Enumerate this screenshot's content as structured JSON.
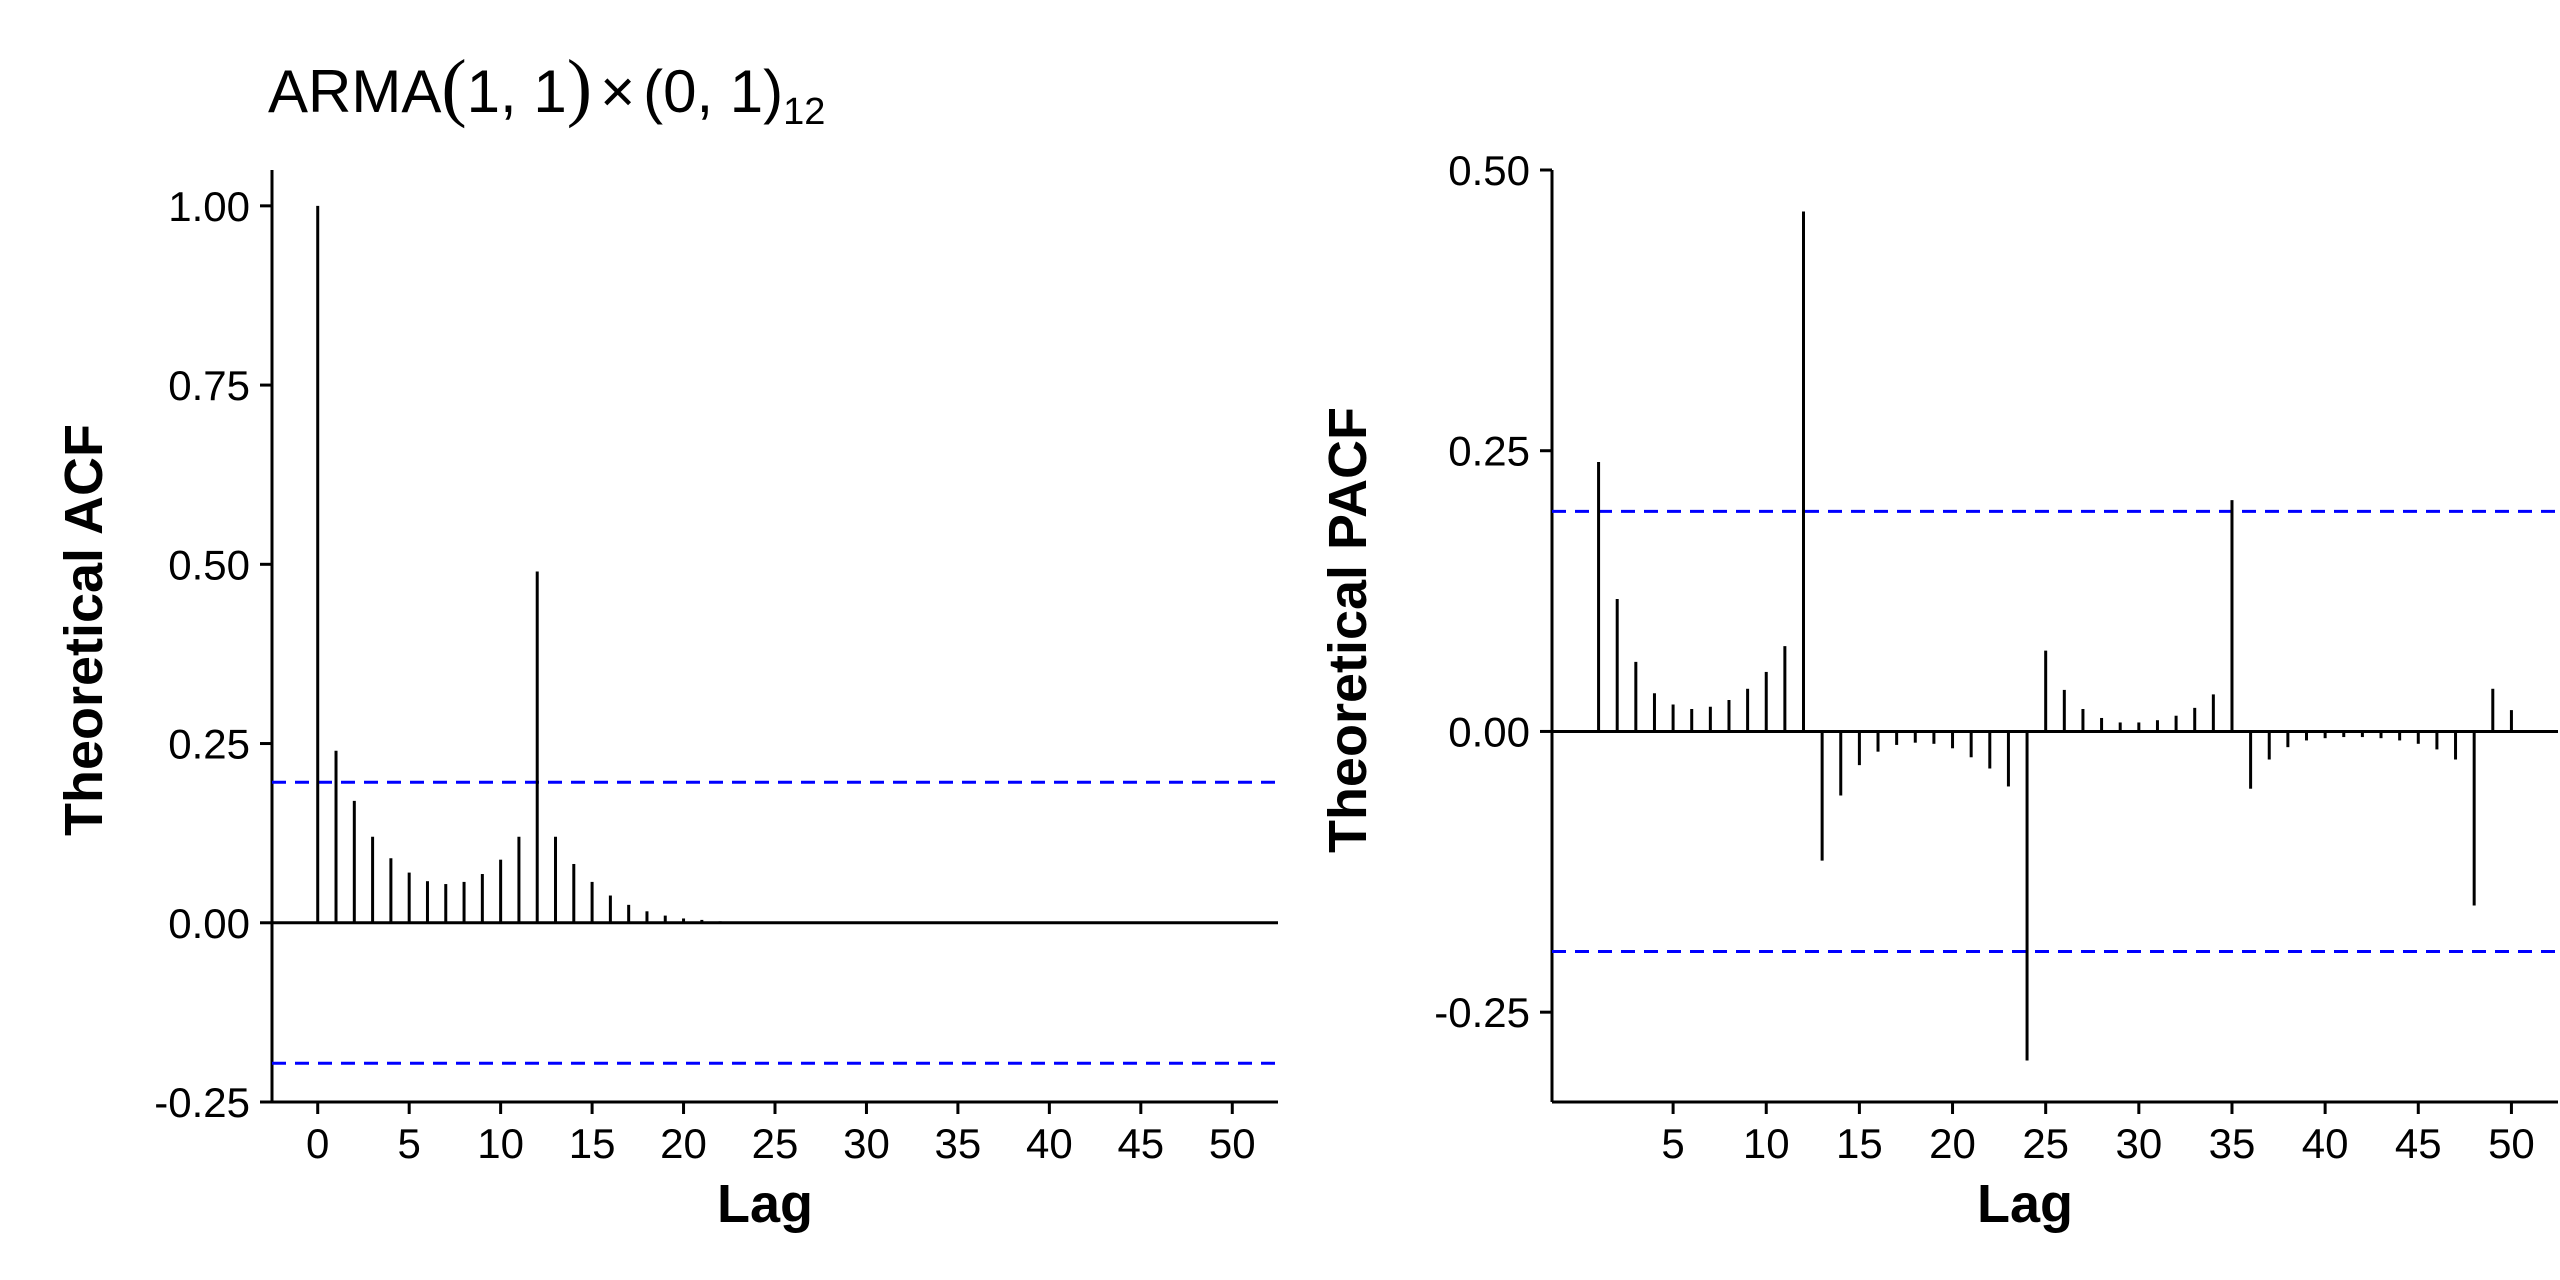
{
  "chart_data": [
    {
      "type": "bar",
      "title": {
        "text_a": "ARMA",
        "paren_open": "(",
        "inner": "1, 1",
        "paren_close": ")",
        "times": "×",
        "text_b": "(0, 1)",
        "subscript": "12"
      },
      "xlabel": "Lag",
      "ylabel": "Theoretical ACF",
      "xlim": [
        -2.5,
        52.5
      ],
      "ylim": [
        -0.25,
        1.05
      ],
      "xticks": [
        0,
        5,
        10,
        15,
        20,
        25,
        30,
        35,
        40,
        45,
        50
      ],
      "yticks": [
        -0.25,
        0.0,
        0.25,
        0.5,
        0.75,
        1.0
      ],
      "ytick_labels": [
        "-0.25",
        "0.00",
        "0.25",
        "0.50",
        "0.75",
        "1.00"
      ],
      "significance_bound": 0.196,
      "bound_color": "#0000ff",
      "lags": [
        0,
        1,
        2,
        3,
        4,
        5,
        6,
        7,
        8,
        9,
        10,
        11,
        12,
        13,
        14,
        15,
        16,
        17,
        18,
        19,
        20,
        21,
        22
      ],
      "values": [
        1.0,
        0.24,
        0.17,
        0.12,
        0.09,
        0.07,
        0.058,
        0.054,
        0.057,
        0.068,
        0.088,
        0.12,
        0.49,
        0.12,
        0.082,
        0.057,
        0.038,
        0.025,
        0.016,
        0.01,
        0.006,
        0.004,
        0.002
      ]
    },
    {
      "type": "bar",
      "xlabel": "Lag",
      "ylabel": "Theoretical PACF",
      "xlim": [
        -1.5,
        52.5
      ],
      "ylim": [
        -0.33,
        0.5
      ],
      "xticks": [
        5,
        10,
        15,
        20,
        25,
        30,
        35,
        40,
        45,
        50
      ],
      "yticks": [
        -0.25,
        0.0,
        0.25,
        0.5
      ],
      "ytick_labels": [
        "-0.25",
        "0.00",
        "0.25",
        "0.50"
      ],
      "significance_bound": 0.196,
      "bound_color": "#0000ff",
      "lags": [
        1,
        2,
        3,
        4,
        5,
        6,
        7,
        8,
        9,
        10,
        11,
        12,
        13,
        14,
        15,
        16,
        17,
        18,
        19,
        20,
        21,
        22,
        23,
        24,
        25,
        26,
        27,
        28,
        29,
        30,
        31,
        32,
        33,
        34,
        35,
        36,
        37,
        38,
        39,
        40,
        41,
        42,
        43,
        44,
        45,
        46,
        47,
        48,
        49,
        50
      ],
      "values": [
        0.24,
        0.118,
        0.062,
        0.034,
        0.024,
        0.02,
        0.022,
        0.028,
        0.038,
        0.053,
        0.076,
        0.463,
        -0.115,
        -0.057,
        -0.03,
        -0.018,
        -0.012,
        -0.01,
        -0.011,
        -0.015,
        -0.023,
        -0.033,
        -0.049,
        -0.293,
        0.072,
        0.037,
        0.02,
        0.012,
        0.008,
        0.008,
        0.01,
        0.014,
        0.021,
        0.033,
        0.206,
        -0.051,
        -0.025,
        -0.014,
        -0.008,
        -0.006,
        -0.005,
        -0.005,
        -0.006,
        -0.008,
        -0.011,
        -0.016,
        -0.025,
        -0.155,
        0.038,
        0.019
      ]
    }
  ]
}
